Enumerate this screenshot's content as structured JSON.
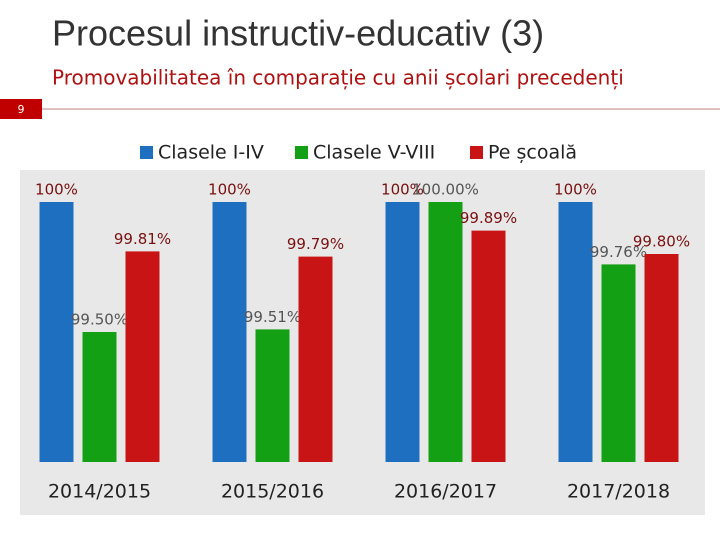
{
  "slide_title": "Procesul instructiv-educativ (3)",
  "slide_subtitle": "Promovabilitatea în comparație cu anii școlari precedenți",
  "slide_number": "9",
  "chart_data": {
    "type": "bar",
    "categories": [
      "2014/2015",
      "2015/2016",
      "2016/2017",
      "2017/2018"
    ],
    "series": [
      {
        "name": "Clasele I-IV",
        "color": "#1f6fc0",
        "values": [
          100,
          100,
          100,
          100
        ],
        "value_labels": [
          "100%",
          "100%",
          "100%",
          "100%"
        ]
      },
      {
        "name": "Clasele V-VIII",
        "color": "#14a014",
        "values": [
          99.5,
          99.51,
          100,
          99.76
        ],
        "value_labels": [
          "99.50%",
          "99.51%",
          "100.00%",
          "99.76%"
        ]
      },
      {
        "name": "Pe școală",
        "color": "#c81414",
        "values": [
          99.81,
          99.79,
          99.89,
          99.8
        ],
        "value_labels": [
          "99.81%",
          "99.79%",
          "99.89%",
          "99.80%"
        ]
      }
    ],
    "ylim": [
      99,
      100.2
    ],
    "legend": "top"
  }
}
